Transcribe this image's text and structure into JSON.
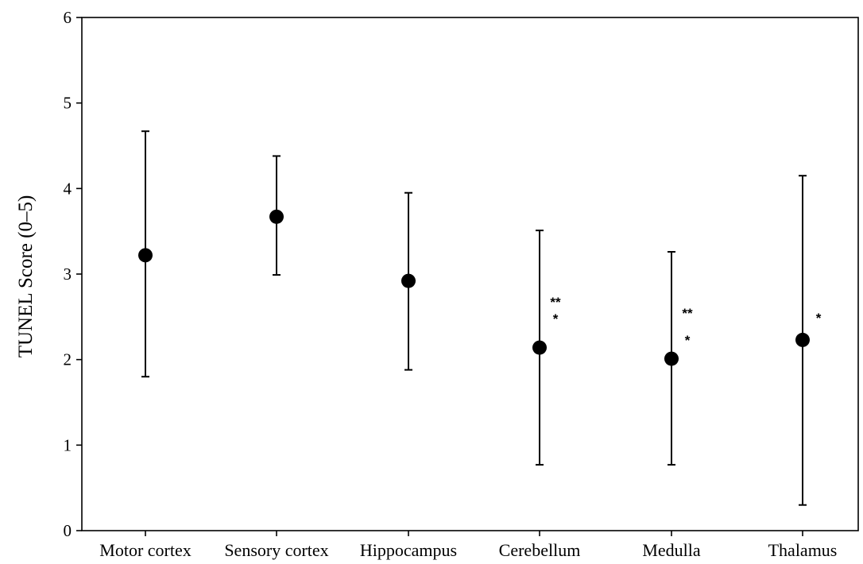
{
  "chart_data": {
    "type": "scatter",
    "title": "",
    "xlabel": "",
    "ylabel": "TUNEL Score (0–5)",
    "ylim": [
      0,
      6
    ],
    "yticks": [
      "0",
      "1",
      "2",
      "3",
      "4",
      "5",
      "6"
    ],
    "grid": false,
    "legend": "none",
    "categories": [
      "Motor cortex",
      "Sensory cortex",
      "Hippocampus",
      "Cerebellum",
      "Medulla",
      "Thalamus"
    ],
    "series": [
      {
        "values": [
          3.22,
          3.67,
          2.92,
          2.14,
          2.01,
          2.23
        ],
        "error_low": [
          1.8,
          2.99,
          1.88,
          0.77,
          0.77,
          0.3
        ],
        "error_high": [
          4.67,
          4.38,
          3.95,
          3.51,
          3.26,
          4.15
        ]
      }
    ],
    "annotations": [
      {
        "category": "Cerebellum",
        "lines": [
          "**",
          "*"
        ]
      },
      {
        "category": "Medulla",
        "lines": [
          "**",
          "*"
        ]
      },
      {
        "category": "Thalamus",
        "lines": [
          "*"
        ]
      }
    ],
    "color": "#000000"
  }
}
